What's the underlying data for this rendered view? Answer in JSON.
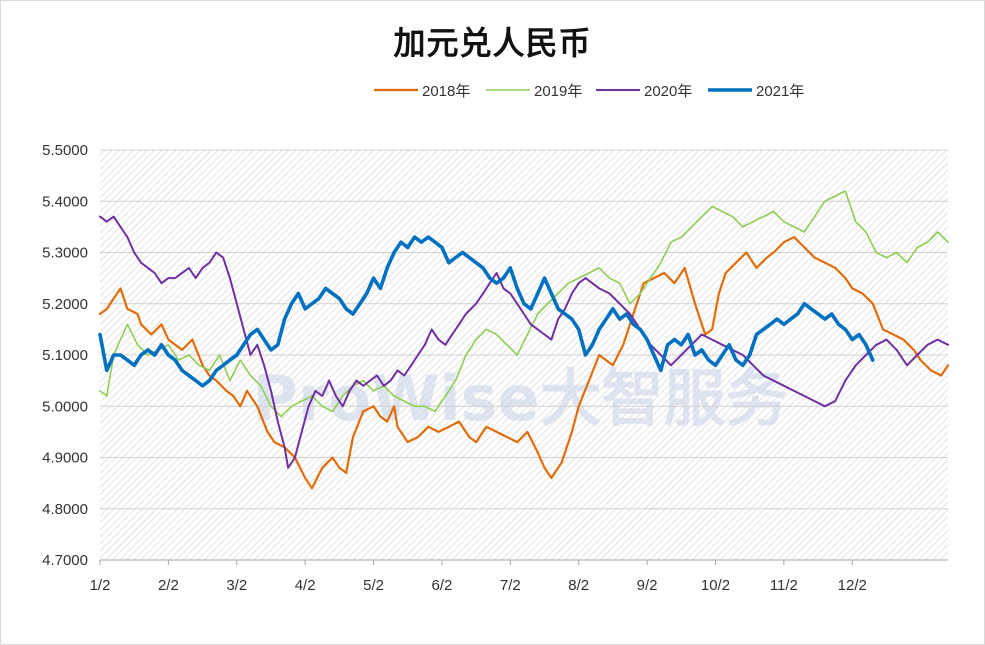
{
  "chart_data": {
    "type": "line",
    "title": "加元兑人民币",
    "ylim": [
      4.7,
      5.5
    ],
    "yticks": [
      "5.5000",
      "5.4000",
      "5.3000",
      "5.2000",
      "5.1000",
      "5.0000",
      "4.9000",
      "4.8000",
      "4.7000"
    ],
    "xticks": [
      "1/2",
      "2/2",
      "3/2",
      "4/2",
      "5/2",
      "6/2",
      "7/2",
      "8/2",
      "9/2",
      "10/2",
      "11/2",
      "12/2"
    ],
    "xlim": [
      0,
      12.4
    ],
    "legend_position": "top",
    "grid": true,
    "watermark": "ProWise大智服务",
    "series": [
      {
        "name": "2018年",
        "color": "#e36c0a",
        "width": 2.2,
        "x": [
          0,
          0.1,
          0.2,
          0.3,
          0.4,
          0.55,
          0.6,
          0.75,
          0.9,
          1.0,
          1.1,
          1.2,
          1.35,
          1.5,
          1.6,
          1.7,
          1.85,
          1.95,
          2.05,
          2.15,
          2.3,
          2.45,
          2.55,
          2.7,
          2.85,
          3.0,
          3.1,
          3.25,
          3.4,
          3.5,
          3.6,
          3.7,
          3.85,
          4.0,
          4.1,
          4.2,
          4.3,
          4.35,
          4.5,
          4.65,
          4.8,
          4.95,
          5.1,
          5.25,
          5.4,
          5.5,
          5.65,
          5.8,
          5.95,
          6.1,
          6.25,
          6.4,
          6.5,
          6.6,
          6.75,
          6.9,
          7.0,
          7.15,
          7.3,
          7.5,
          7.65,
          7.8,
          7.95,
          8.1,
          8.25,
          8.4,
          8.55,
          8.7,
          8.85,
          8.95,
          9.05,
          9.15,
          9.3,
          9.45,
          9.6,
          9.75,
          9.85,
          10.0,
          10.15,
          10.3,
          10.45,
          10.6,
          10.75,
          10.9,
          11.0,
          11.15,
          11.3,
          11.45,
          11.6,
          11.75,
          11.9,
          12.0,
          12.15,
          12.3,
          12.4
        ],
        "y": [
          5.18,
          5.19,
          5.21,
          5.23,
          5.19,
          5.18,
          5.16,
          5.14,
          5.16,
          5.13,
          5.12,
          5.11,
          5.13,
          5.08,
          5.06,
          5.05,
          5.03,
          5.02,
          5.0,
          5.03,
          5.0,
          4.95,
          4.93,
          4.92,
          4.9,
          4.86,
          4.84,
          4.88,
          4.9,
          4.88,
          4.87,
          4.94,
          4.99,
          5.0,
          4.98,
          4.97,
          5.0,
          4.96,
          4.93,
          4.94,
          4.96,
          4.95,
          4.96,
          4.97,
          4.94,
          4.93,
          4.96,
          4.95,
          4.94,
          4.93,
          4.95,
          4.91,
          4.88,
          4.86,
          4.89,
          4.95,
          5.0,
          5.05,
          5.1,
          5.08,
          5.12,
          5.18,
          5.24,
          5.25,
          5.26,
          5.24,
          5.27,
          5.2,
          5.14,
          5.15,
          5.22,
          5.26,
          5.28,
          5.3,
          5.27,
          5.29,
          5.3,
          5.32,
          5.33,
          5.31,
          5.29,
          5.28,
          5.27,
          5.25,
          5.23,
          5.22,
          5.2,
          5.15,
          5.14,
          5.13,
          5.11,
          5.09,
          5.07,
          5.06,
          5.08
        ]
      },
      {
        "name": "2019年",
        "color": "#8fce55",
        "width": 1.6,
        "x": [
          0,
          0.1,
          0.2,
          0.3,
          0.4,
          0.55,
          0.7,
          0.85,
          1.0,
          1.15,
          1.3,
          1.45,
          1.6,
          1.75,
          1.9,
          2.05,
          2.2,
          2.35,
          2.5,
          2.65,
          2.8,
          2.95,
          3.1,
          3.25,
          3.4,
          3.55,
          3.7,
          3.85,
          4.0,
          4.15,
          4.3,
          4.45,
          4.6,
          4.75,
          4.9,
          5.05,
          5.2,
          5.35,
          5.5,
          5.65,
          5.8,
          5.95,
          6.1,
          6.25,
          6.4,
          6.55,
          6.7,
          6.85,
          7.0,
          7.15,
          7.3,
          7.45,
          7.6,
          7.75,
          7.9,
          8.05,
          8.2,
          8.35,
          8.5,
          8.65,
          8.8,
          8.95,
          9.1,
          9.25,
          9.4,
          9.55,
          9.7,
          9.85,
          10.0,
          10.15,
          10.3,
          10.45,
          10.6,
          10.75,
          10.9,
          11.05,
          11.2,
          11.35,
          11.5,
          11.65,
          11.8,
          11.95,
          12.1,
          12.25,
          12.4
        ],
        "y": [
          5.03,
          5.02,
          5.1,
          5.13,
          5.16,
          5.12,
          5.1,
          5.11,
          5.12,
          5.09,
          5.1,
          5.08,
          5.07,
          5.1,
          5.05,
          5.09,
          5.06,
          5.04,
          5.0,
          4.98,
          5.0,
          5.01,
          5.02,
          5.0,
          4.99,
          5.02,
          5.04,
          5.05,
          5.03,
          5.04,
          5.02,
          5.01,
          5.0,
          5.0,
          4.99,
          5.02,
          5.05,
          5.1,
          5.13,
          5.15,
          5.14,
          5.12,
          5.1,
          5.14,
          5.18,
          5.2,
          5.22,
          5.24,
          5.25,
          5.26,
          5.27,
          5.25,
          5.24,
          5.2,
          5.22,
          5.25,
          5.28,
          5.32,
          5.33,
          5.35,
          5.37,
          5.39,
          5.38,
          5.37,
          5.35,
          5.36,
          5.37,
          5.38,
          5.36,
          5.35,
          5.34,
          5.37,
          5.4,
          5.41,
          5.42,
          5.36,
          5.34,
          5.3,
          5.29,
          5.3,
          5.28,
          5.31,
          5.32,
          5.34,
          5.32
        ]
      },
      {
        "name": "2020年",
        "color": "#7030a0",
        "width": 2.0,
        "x": [
          0,
          0.1,
          0.2,
          0.3,
          0.4,
          0.5,
          0.6,
          0.7,
          0.8,
          0.9,
          1.0,
          1.1,
          1.2,
          1.3,
          1.4,
          1.5,
          1.6,
          1.7,
          1.8,
          1.9,
          2.0,
          2.1,
          2.2,
          2.3,
          2.4,
          2.5,
          2.6,
          2.7,
          2.75,
          2.85,
          2.95,
          3.05,
          3.15,
          3.25,
          3.35,
          3.45,
          3.55,
          3.65,
          3.75,
          3.85,
          3.95,
          4.05,
          4.15,
          4.25,
          4.35,
          4.45,
          4.55,
          4.65,
          4.75,
          4.85,
          4.95,
          5.05,
          5.15,
          5.25,
          5.35,
          5.5,
          5.6,
          5.7,
          5.8,
          5.9,
          6.0,
          6.1,
          6.2,
          6.3,
          6.4,
          6.5,
          6.6,
          6.7,
          6.8,
          6.9,
          7.0,
          7.1,
          7.2,
          7.3,
          7.45,
          7.6,
          7.75,
          7.9,
          8.05,
          8.2,
          8.35,
          8.5,
          8.65,
          8.8,
          8.95,
          9.1,
          9.25,
          9.4,
          9.55,
          9.7,
          9.85,
          10.0,
          10.15,
          10.3,
          10.45,
          10.6,
          10.75,
          10.9,
          11.05,
          11.2,
          11.35,
          11.5,
          11.65,
          11.8,
          11.95,
          12.1,
          12.25,
          12.4
        ],
        "y": [
          5.37,
          5.36,
          5.37,
          5.35,
          5.33,
          5.3,
          5.28,
          5.27,
          5.26,
          5.24,
          5.25,
          5.25,
          5.26,
          5.27,
          5.25,
          5.27,
          5.28,
          5.3,
          5.29,
          5.25,
          5.2,
          5.15,
          5.1,
          5.12,
          5.08,
          5.03,
          4.97,
          4.92,
          4.88,
          4.9,
          4.95,
          5.0,
          5.03,
          5.02,
          5.05,
          5.02,
          5.0,
          5.03,
          5.05,
          5.04,
          5.05,
          5.06,
          5.04,
          5.05,
          5.07,
          5.06,
          5.08,
          5.1,
          5.12,
          5.15,
          5.13,
          5.12,
          5.14,
          5.16,
          5.18,
          5.2,
          5.22,
          5.24,
          5.26,
          5.23,
          5.22,
          5.2,
          5.18,
          5.16,
          5.15,
          5.14,
          5.13,
          5.17,
          5.19,
          5.22,
          5.24,
          5.25,
          5.24,
          5.23,
          5.22,
          5.2,
          5.18,
          5.15,
          5.12,
          5.1,
          5.08,
          5.1,
          5.12,
          5.14,
          5.13,
          5.12,
          5.11,
          5.1,
          5.08,
          5.06,
          5.05,
          5.04,
          5.03,
          5.02,
          5.01,
          5.0,
          5.01,
          5.05,
          5.08,
          5.1,
          5.12,
          5.13,
          5.11,
          5.08,
          5.1,
          5.12,
          5.13,
          5.12
        ]
      },
      {
        "name": "2021年",
        "color": "#0070c0",
        "width": 3.6,
        "x": [
          0,
          0.1,
          0.2,
          0.3,
          0.4,
          0.5,
          0.6,
          0.7,
          0.8,
          0.9,
          1.0,
          1.1,
          1.2,
          1.3,
          1.4,
          1.5,
          1.6,
          1.7,
          1.8,
          1.9,
          2.0,
          2.1,
          2.2,
          2.3,
          2.4,
          2.5,
          2.6,
          2.7,
          2.8,
          2.9,
          3.0,
          3.1,
          3.2,
          3.3,
          3.4,
          3.5,
          3.6,
          3.7,
          3.8,
          3.9,
          4.0,
          4.1,
          4.2,
          4.3,
          4.4,
          4.5,
          4.6,
          4.7,
          4.8,
          4.9,
          5.0,
          5.1,
          5.2,
          5.3,
          5.4,
          5.5,
          5.6,
          5.7,
          5.8,
          5.9,
          6.0,
          6.1,
          6.2,
          6.3,
          6.4,
          6.5,
          6.6,
          6.7,
          6.8,
          6.9,
          7.0,
          7.1,
          7.2,
          7.3,
          7.4,
          7.5,
          7.6,
          7.7,
          7.8,
          7.9,
          8.0,
          8.1,
          8.2,
          8.3,
          8.4,
          8.5,
          8.6,
          8.7,
          8.8,
          8.9,
          9.0,
          9.1,
          9.2,
          9.3,
          9.4,
          9.5,
          9.6,
          9.7,
          9.8,
          9.9,
          10.0,
          10.1,
          10.2,
          10.3,
          10.4,
          10.5,
          10.6,
          10.7,
          10.8,
          10.9,
          11.0,
          11.1,
          11.2,
          11.3
        ],
        "y": [
          5.14,
          5.07,
          5.1,
          5.1,
          5.09,
          5.08,
          5.1,
          5.11,
          5.1,
          5.12,
          5.1,
          5.09,
          5.07,
          5.06,
          5.05,
          5.04,
          5.05,
          5.07,
          5.08,
          5.09,
          5.1,
          5.12,
          5.14,
          5.15,
          5.13,
          5.11,
          5.12,
          5.17,
          5.2,
          5.22,
          5.19,
          5.2,
          5.21,
          5.23,
          5.22,
          5.21,
          5.19,
          5.18,
          5.2,
          5.22,
          5.25,
          5.23,
          5.27,
          5.3,
          5.32,
          5.31,
          5.33,
          5.32,
          5.33,
          5.32,
          5.31,
          5.28,
          5.29,
          5.3,
          5.29,
          5.28,
          5.27,
          5.25,
          5.24,
          5.25,
          5.27,
          5.23,
          5.2,
          5.19,
          5.22,
          5.25,
          5.22,
          5.19,
          5.18,
          5.17,
          5.15,
          5.1,
          5.12,
          5.15,
          5.17,
          5.19,
          5.17,
          5.18,
          5.16,
          5.15,
          5.13,
          5.1,
          5.07,
          5.12,
          5.13,
          5.12,
          5.14,
          5.1,
          5.11,
          5.09,
          5.08,
          5.1,
          5.12,
          5.09,
          5.08,
          5.1,
          5.14,
          5.15,
          5.16,
          5.17,
          5.16,
          5.17,
          5.18,
          5.2,
          5.19,
          5.18,
          5.17,
          5.18,
          5.16,
          5.15,
          5.13,
          5.14,
          5.12,
          5.09
        ]
      }
    ]
  }
}
